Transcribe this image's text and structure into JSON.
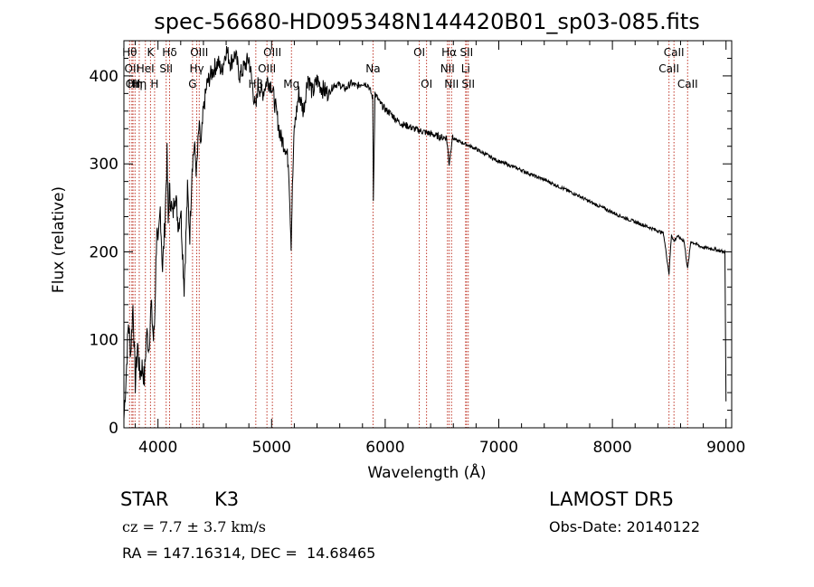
{
  "chart_data": {
    "type": "line",
    "title": "spec-56680-HD095348N144420B01_sp03-085.fits",
    "xlabel": "Wavelength (Å)",
    "ylabel": "Flux (relative)",
    "xlim": [
      3700,
      9050
    ],
    "ylim": [
      0,
      440
    ],
    "x_ticks": [
      4000,
      5000,
      6000,
      7000,
      8000,
      9000
    ],
    "y_ticks": [
      0,
      100,
      200,
      300,
      400
    ],
    "grid": false,
    "series": [
      {
        "color": "#000000",
        "x": [
          3700,
          3720,
          3740,
          3760,
          3780,
          3800,
          3820,
          3840,
          3860,
          3880,
          3900,
          3920,
          3940,
          3960,
          3970,
          3990,
          4000,
          4020,
          4040,
          4060,
          4080,
          4090,
          4100,
          4110,
          4130,
          4150,
          4180,
          4200,
          4230,
          4260,
          4280,
          4300,
          4320,
          4340,
          4360,
          4380,
          4400,
          4430,
          4460,
          4500,
          4530,
          4560,
          4600,
          4640,
          4680,
          4720,
          4760,
          4800,
          4840,
          4861,
          4880,
          4920,
          4960,
          5000,
          5040,
          5080,
          5120,
          5150,
          5172,
          5183,
          5200,
          5240,
          5280,
          5320,
          5360,
          5400,
          5450,
          5500,
          5550,
          5600,
          5650,
          5700,
          5750,
          5800,
          5850,
          5890,
          5896,
          5910,
          5950,
          6000,
          6050,
          6100,
          6150,
          6200,
          6250,
          6300,
          6350,
          6400,
          6450,
          6500,
          6540,
          6563,
          6590,
          6620,
          6660,
          6700,
          6750,
          6800,
          6850,
          6900,
          6950,
          7000,
          7100,
          7200,
          7300,
          7400,
          7500,
          7600,
          7700,
          7800,
          7900,
          8000,
          8100,
          8200,
          8300,
          8400,
          8450,
          8498,
          8520,
          8542,
          8570,
          8600,
          8630,
          8662,
          8690,
          8720,
          8760,
          8800,
          8850,
          8900,
          8950,
          8990,
          9000
        ],
        "values": [
          10,
          60,
          120,
          85,
          140,
          50,
          95,
          60,
          70,
          55,
          110,
          90,
          140,
          100,
          120,
          230,
          200,
          250,
          180,
          230,
          310,
          230,
          270,
          260,
          240,
          270,
          230,
          250,
          160,
          270,
          220,
          300,
          320,
          290,
          340,
          320,
          360,
          390,
          400,
          410,
          415,
          405,
          430,
          415,
          425,
          400,
          410,
          420,
          380,
          360,
          390,
          380,
          395,
          390,
          360,
          330,
          320,
          300,
          210,
          270,
          340,
          380,
          360,
          400,
          380,
          395,
          385,
          380,
          390,
          390,
          385,
          392,
          388,
          392,
          390,
          375,
          260,
          380,
          370,
          362,
          357,
          350,
          345,
          343,
          340,
          338,
          336,
          334,
          332,
          330,
          330,
          300,
          330,
          327,
          325,
          323,
          320,
          317,
          313,
          310,
          306,
          303,
          298,
          293,
          287,
          282,
          276,
          270,
          264,
          257,
          251,
          245,
          239,
          234,
          229,
          224,
          221,
          175,
          220,
          212,
          218,
          215,
          213,
          180,
          212,
          210,
          207,
          205,
          204,
          203,
          201,
          200,
          30
        ]
      }
    ],
    "lines": [
      {
        "x": 3750,
        "label": "Hθ",
        "row": 0
      },
      {
        "x": 3770,
        "label": "OII",
        "row": 1
      },
      {
        "x": 3780,
        "label": "OII",
        "row": 2
      },
      {
        "x": 3798,
        "label": "Hη",
        "row": 2
      },
      {
        "x": 3835,
        "label": "Hη",
        "row": 2
      },
      {
        "x": 3889,
        "label": "HeI",
        "row": 1
      },
      {
        "x": 3934,
        "label": "K",
        "row": 0
      },
      {
        "x": 3970,
        "label": "H",
        "row": 2
      },
      {
        "x": 4072,
        "label": "SII",
        "row": 1
      },
      {
        "x": 4102,
        "label": "Hδ",
        "row": 0
      },
      {
        "x": 4304,
        "label": "G",
        "row": 2
      },
      {
        "x": 4341,
        "label": "Hγ",
        "row": 1
      },
      {
        "x": 4363,
        "label": "OIII",
        "row": 0
      },
      {
        "x": 4861,
        "label": "Hβ",
        "row": 2
      },
      {
        "x": 4959,
        "label": "OIII",
        "row": 1
      },
      {
        "x": 5007,
        "label": "OIII",
        "row": 0
      },
      {
        "x": 5175,
        "label": "Mg",
        "row": 2
      },
      {
        "x": 5893,
        "label": "Na",
        "row": 1
      },
      {
        "x": 6300,
        "label": "OI",
        "row": 0
      },
      {
        "x": 6364,
        "label": "OI",
        "row": 2
      },
      {
        "x": 6548,
        "label": "NII",
        "row": 1
      },
      {
        "x": 6563,
        "label": "Hα",
        "row": 0
      },
      {
        "x": 6584,
        "label": "NII",
        "row": 2
      },
      {
        "x": 6708,
        "label": "Li",
        "row": 1
      },
      {
        "x": 6716,
        "label": "SII",
        "row": 0
      },
      {
        "x": 6731,
        "label": "SII",
        "row": 2
      },
      {
        "x": 8498,
        "label": "CaII",
        "row": 1
      },
      {
        "x": 8542,
        "label": "CaII",
        "row": 0
      },
      {
        "x": 8662,
        "label": "CaII",
        "row": 2
      }
    ],
    "line_color": "#c0392b"
  },
  "info": {
    "class_label": "STAR",
    "subclass": "K3",
    "cz": "cz = 7.7 ± 3.7 km/s",
    "coords": "RA = 147.16314, DEC =  14.68465",
    "survey": "LAMOST DR5",
    "obs_date": "Obs-Date: 20140122"
  }
}
